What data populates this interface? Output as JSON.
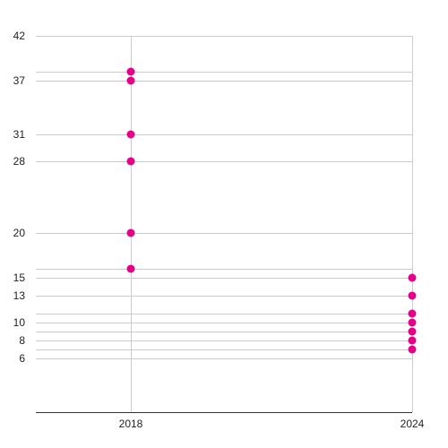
{
  "chart_data": {
    "type": "scatter",
    "title": "",
    "xlabel": "",
    "ylabel": "",
    "x_ticks": [
      "2018",
      "2024"
    ],
    "y_ticks": [
      6,
      8,
      10,
      13,
      15,
      20,
      28,
      31,
      37,
      42
    ],
    "ylim": [
      0,
      42
    ],
    "grid": true,
    "series": [
      {
        "points": [
          {
            "x": "2018",
            "y": 38
          },
          {
            "x": "2018",
            "y": 37
          },
          {
            "x": "2018",
            "y": 31
          },
          {
            "x": "2018",
            "y": 28
          },
          {
            "x": "2018",
            "y": 20
          },
          {
            "x": "2018",
            "y": 16
          },
          {
            "x": "2024",
            "y": 15
          },
          {
            "x": "2024",
            "y": 13
          },
          {
            "x": "2024",
            "y": 11
          },
          {
            "x": "2024",
            "y": 10
          },
          {
            "x": "2024",
            "y": 9
          },
          {
            "x": "2024",
            "y": 8
          },
          {
            "x": "2024",
            "y": 7
          }
        ]
      }
    ],
    "colors": {
      "marker": "#e5008a",
      "grid": "#cccccc",
      "axis": "#333333",
      "text": "#222222"
    }
  }
}
